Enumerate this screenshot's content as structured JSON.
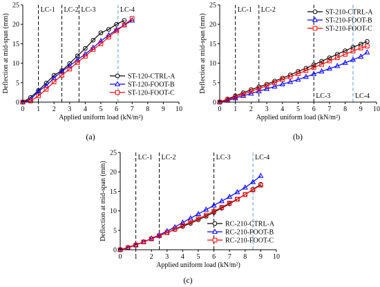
{
  "chart_data": [
    {
      "type": "line",
      "panel_label": "(a)",
      "xlabel": "Applied uniform load (kN/m²)",
      "ylabel": "Deflection at mid-span (mm)",
      "xlim": [
        0,
        10
      ],
      "ylim": [
        0,
        25
      ],
      "xticks": [
        0,
        1,
        2,
        3,
        4,
        5,
        6,
        7,
        8,
        9,
        10
      ],
      "yticks": [
        0,
        5,
        10,
        15,
        20,
        25
      ],
      "grid": false,
      "legend_position": "bottom-right",
      "load_cases": [
        {
          "label": "LC-1",
          "x": 1.0,
          "color": "#000000",
          "label_position": "top"
        },
        {
          "label": "LC-2",
          "x": 2.5,
          "color": "#000000",
          "label_position": "top"
        },
        {
          "label": "LC-3",
          "x": 3.6,
          "color": "#000000",
          "label_position": "top"
        },
        {
          "label": "LC-4",
          "x": 6.1,
          "color": "#5b9bd5",
          "label_position": "top"
        }
      ],
      "series": [
        {
          "name": "ST-120-CTRL-A",
          "color": "#000000",
          "marker": "circle",
          "x": [
            0,
            0.5,
            1.0,
            1.5,
            2.0,
            2.5,
            3.0,
            3.5,
            4.0,
            4.5,
            5.0,
            5.5,
            6.0,
            6.5
          ],
          "y": [
            0,
            1.2,
            3.0,
            4.9,
            6.9,
            8.1,
            9.9,
            11.9,
            13.8,
            15.9,
            17.8,
            18.7,
            20.0,
            21.0
          ]
        },
        {
          "name": "ST-120-FOOT-B",
          "color": "#0000ff",
          "marker": "triangle",
          "x": [
            0,
            0.5,
            1.0,
            1.5,
            2.0,
            2.5,
            3.0,
            3.5,
            4.0,
            4.5,
            5.0,
            5.5,
            6.0,
            6.5,
            7.0
          ],
          "y": [
            0,
            0.7,
            2.8,
            4.2,
            6.2,
            7.9,
            9.3,
            10.9,
            12.3,
            14.0,
            15.7,
            17.2,
            18.6,
            19.8,
            21.0
          ]
        },
        {
          "name": "ST-120-FOOT-C",
          "color": "#ff0000",
          "marker": "square",
          "x": [
            0,
            0.5,
            1.0,
            1.5,
            2.0,
            2.5,
            3.0,
            3.5,
            4.0,
            4.5,
            5.0,
            5.5,
            6.0,
            6.5,
            7.0
          ],
          "y": [
            0,
            0.3,
            1.6,
            3.3,
            5.2,
            6.9,
            8.5,
            10.2,
            11.8,
            13.5,
            15.0,
            16.7,
            18.3,
            19.8,
            21.5
          ]
        }
      ]
    },
    {
      "type": "line",
      "panel_label": "(b)",
      "xlabel": "Applied uniform load (kN/m²)",
      "ylabel": "Deflection at mid-span (mm)",
      "xlim": [
        0,
        10
      ],
      "ylim": [
        0,
        25
      ],
      "xticks": [
        0,
        1,
        2,
        3,
        4,
        5,
        6,
        7,
        8,
        9,
        10
      ],
      "yticks": [
        0,
        5,
        10,
        15,
        20,
        25
      ],
      "grid": false,
      "legend_position": "top-right",
      "load_cases": [
        {
          "label": "LC-1",
          "x": 1.0,
          "color": "#000000",
          "label_position": "top"
        },
        {
          "label": "LC-2",
          "x": 2.5,
          "color": "#000000",
          "label_position": "top"
        },
        {
          "label": "LC-3",
          "x": 6.0,
          "color": "#000000",
          "label_position": "bottom"
        },
        {
          "label": "LC-4",
          "x": 8.5,
          "color": "#5b9bd5",
          "label_position": "bottom"
        }
      ],
      "series": [
        {
          "name": "ST-210-CTRL-A",
          "color": "#000000",
          "marker": "circle",
          "x": [
            0,
            0.5,
            1.0,
            1.5,
            2.0,
            2.5,
            3.0,
            3.5,
            4.0,
            4.5,
            5.0,
            5.5,
            6.0,
            6.5,
            7.0,
            7.5,
            8.0,
            8.5,
            9.0,
            9.4
          ],
          "y": [
            0,
            0.8,
            1.6,
            2.4,
            3.2,
            3.9,
            4.6,
            5.4,
            6.2,
            7.0,
            7.9,
            8.7,
            9.6,
            10.5,
            11.4,
            12.3,
            13.2,
            14.1,
            14.9,
            15.6
          ]
        },
        {
          "name": "ST-210-FOOT-B",
          "color": "#0000ff",
          "marker": "triangle",
          "x": [
            0,
            0.5,
            1.0,
            1.5,
            2.0,
            2.5,
            3.0,
            3.5,
            4.0,
            4.5,
            5.0,
            5.5,
            6.0,
            6.5,
            7.0,
            7.5,
            8.0,
            8.5,
            9.0,
            9.4
          ],
          "y": [
            0,
            0.4,
            1.0,
            1.6,
            2.2,
            2.8,
            3.4,
            4.0,
            4.6,
            5.2,
            5.8,
            6.5,
            7.2,
            7.9,
            8.6,
            9.3,
            10.1,
            10.9,
            11.7,
            12.8
          ]
        },
        {
          "name": "ST-210-FOOT-C",
          "color": "#ff0000",
          "marker": "square",
          "x": [
            0,
            0.5,
            1.0,
            1.5,
            2.0,
            2.5,
            3.0,
            3.5,
            4.0,
            4.5,
            5.0,
            5.5,
            6.0,
            6.5,
            7.0,
            7.5,
            8.0,
            8.5,
            9.0,
            9.4
          ],
          "y": [
            0,
            0.6,
            1.3,
            2.0,
            2.8,
            3.5,
            4.2,
            5.0,
            5.8,
            6.5,
            7.3,
            8.1,
            8.9,
            9.7,
            10.6,
            11.4,
            12.3,
            13.1,
            13.9,
            14.4
          ]
        }
      ]
    },
    {
      "type": "line",
      "panel_label": "(c)",
      "xlabel": "Applied uniform load (kN/m²)",
      "ylabel": "Deflection at mid-span (mm)",
      "xlim": [
        0,
        10
      ],
      "ylim": [
        0,
        25
      ],
      "xticks": [
        0,
        1,
        2,
        3,
        4,
        5,
        6,
        7,
        8,
        9,
        10
      ],
      "yticks": [
        0,
        5,
        10,
        15,
        20,
        25
      ],
      "grid": false,
      "legend_position": "bottom-right",
      "load_cases": [
        {
          "label": "LC-1",
          "x": 1.0,
          "color": "#000000",
          "label_position": "top"
        },
        {
          "label": "LC-2",
          "x": 2.5,
          "color": "#000000",
          "label_position": "top"
        },
        {
          "label": "LC-3",
          "x": 6.0,
          "color": "#000000",
          "label_position": "top"
        },
        {
          "label": "LC-4",
          "x": 8.5,
          "color": "#5b9bd5",
          "label_position": "top"
        }
      ],
      "series": [
        {
          "name": "RC-210-CTRL-A",
          "color": "#000000",
          "marker": "circle",
          "x": [
            0,
            0.5,
            1.0,
            1.5,
            2.0,
            2.5,
            3.0,
            3.5,
            4.0,
            4.5,
            5.0,
            5.5,
            6.0,
            6.5,
            7.0,
            7.5,
            8.0,
            8.5,
            9.0
          ],
          "y": [
            0,
            0.6,
            1.3,
            2.0,
            2.8,
            3.6,
            4.4,
            5.2,
            6.0,
            6.8,
            7.7,
            8.6,
            9.6,
            10.7,
            11.8,
            13.0,
            14.2,
            15.5,
            16.8
          ]
        },
        {
          "name": "RC-210-FOOT-B",
          "color": "#0000ff",
          "marker": "triangle",
          "x": [
            0,
            0.5,
            1.0,
            1.5,
            2.0,
            2.5,
            3.0,
            3.5,
            4.0,
            4.5,
            5.0,
            5.5,
            6.0,
            6.5,
            7.0,
            7.5,
            8.0,
            8.5,
            9.0
          ],
          "y": [
            0,
            0.5,
            1.2,
            2.0,
            2.9,
            3.8,
            4.8,
            5.8,
            7.0,
            8.1,
            9.2,
            10.3,
            11.4,
            12.5,
            13.6,
            14.8,
            16.0,
            17.4,
            19.0
          ]
        },
        {
          "name": "RC-210-FOOT-C",
          "color": "#ff0000",
          "marker": "square",
          "x": [
            0,
            0.5,
            1.0,
            1.5,
            2.0,
            2.5,
            3.0,
            3.5,
            4.0,
            4.5,
            5.0,
            5.5,
            6.0,
            6.5,
            7.0,
            7.5,
            8.0,
            8.5,
            9.0
          ],
          "y": [
            0,
            0.5,
            1.2,
            2.0,
            2.8,
            3.6,
            4.4,
            5.3,
            6.2,
            7.1,
            8.0,
            8.9,
            9.9,
            10.9,
            12.0,
            13.0,
            14.2,
            15.4,
            16.6
          ]
        }
      ]
    }
  ]
}
